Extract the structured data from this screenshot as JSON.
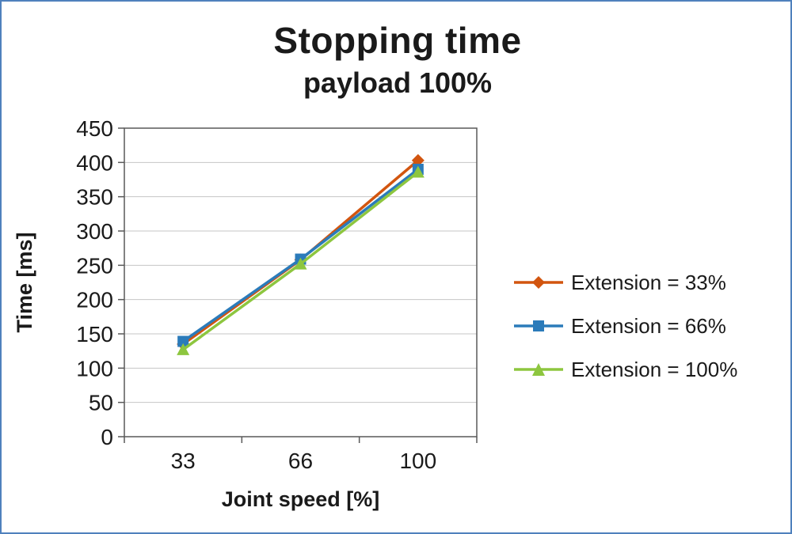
{
  "title": "Stopping time",
  "subtitle": "payload 100%",
  "frame_color": "#4f81bd",
  "chart_data": {
    "type": "line",
    "title": "Stopping time",
    "subtitle": "payload 100%",
    "xlabel": "Joint speed [%]",
    "ylabel": "Time [ms]",
    "categories": [
      "33",
      "66",
      "100"
    ],
    "x": [
      33,
      66,
      100
    ],
    "ylim": [
      0,
      450
    ],
    "ytick_step": 50,
    "yticks": [
      "0",
      "50",
      "100",
      "150",
      "200",
      "250",
      "300",
      "350",
      "400",
      "450"
    ],
    "grid": true,
    "gridline_color": "#c6c6c6",
    "axis_color": "#595959",
    "legend_position": "right",
    "series": [
      {
        "name": "Extension = 33%",
        "marker": "diamond",
        "color": "#d2550f",
        "values": [
          135,
          258,
          403
        ]
      },
      {
        "name": "Extension = 66%",
        "marker": "square",
        "color": "#2b7bba",
        "values": [
          139,
          259,
          390
        ]
      },
      {
        "name": "Extension = 100%",
        "marker": "triangle",
        "color": "#8dc63f",
        "values": [
          127,
          252,
          386
        ]
      }
    ]
  }
}
